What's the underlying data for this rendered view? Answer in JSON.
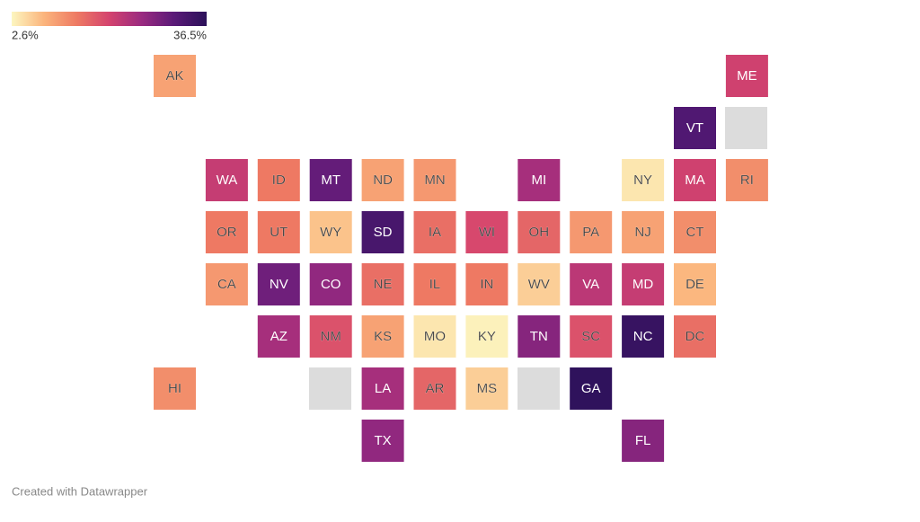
{
  "legend": {
    "ticks": [
      {
        "value": 2.6,
        "label": "2.6%"
      },
      {
        "value": 36.5,
        "label": "36.5%"
      }
    ],
    "colors": [
      "#fcf6c0",
      "#fbb47c",
      "#ee7a63",
      "#d4436e",
      "#9a2a80",
      "#5a1a78",
      "#2b1159"
    ]
  },
  "tiles": [
    {
      "label": "AK",
      "value": 10
    },
    {
      "label": "ME",
      "value": 20
    },
    {
      "label": "VT",
      "value": 32
    },
    {
      "label": "WA",
      "value": 21
    },
    {
      "label": "ID",
      "value": 14
    },
    {
      "label": "MT",
      "value": 30
    },
    {
      "label": "ND",
      "value": 10
    },
    {
      "label": "MN",
      "value": 11
    },
    {
      "label": "MI",
      "value": 24
    },
    {
      "label": "NY",
      "value": 4
    },
    {
      "label": "MA",
      "value": 20
    },
    {
      "label": "RI",
      "value": 12
    },
    {
      "label": "OR",
      "value": 14
    },
    {
      "label": "UT",
      "value": 14
    },
    {
      "label": "WY",
      "value": 7
    },
    {
      "label": "SD",
      "value": 33
    },
    {
      "label": "IA",
      "value": 15
    },
    {
      "label": "WI",
      "value": 19
    },
    {
      "label": "OH",
      "value": 16
    },
    {
      "label": "PA",
      "value": 11
    },
    {
      "label": "NJ",
      "value": 10
    },
    {
      "label": "CT",
      "value": 12
    },
    {
      "label": "CA",
      "value": 11
    },
    {
      "label": "NV",
      "value": 29
    },
    {
      "label": "CO",
      "value": 26
    },
    {
      "label": "NE",
      "value": 15
    },
    {
      "label": "IL",
      "value": 14
    },
    {
      "label": "IN",
      "value": 14
    },
    {
      "label": "WV",
      "value": 6
    },
    {
      "label": "VA",
      "value": 22
    },
    {
      "label": "MD",
      "value": 21
    },
    {
      "label": "DE",
      "value": 8
    },
    {
      "label": "AZ",
      "value": 24
    },
    {
      "label": "NM",
      "value": 18
    },
    {
      "label": "KS",
      "value": 10
    },
    {
      "label": "MO",
      "value": 4
    },
    {
      "label": "KY",
      "value": 3
    },
    {
      "label": "TN",
      "value": 27
    },
    {
      "label": "SC",
      "value": 18
    },
    {
      "label": "NC",
      "value": 35
    },
    {
      "label": "DC",
      "value": 15
    },
    {
      "label": "HI",
      "value": 12
    },
    {
      "label": "LA",
      "value": 24
    },
    {
      "label": "AR",
      "value": 16
    },
    {
      "label": "MS",
      "value": 6
    },
    {
      "label": "GA",
      "value": 36
    },
    {
      "label": "TX",
      "value": 26
    },
    {
      "label": "FL",
      "value": 27
    }
  ],
  "footer": "Created with Datawrapper"
}
